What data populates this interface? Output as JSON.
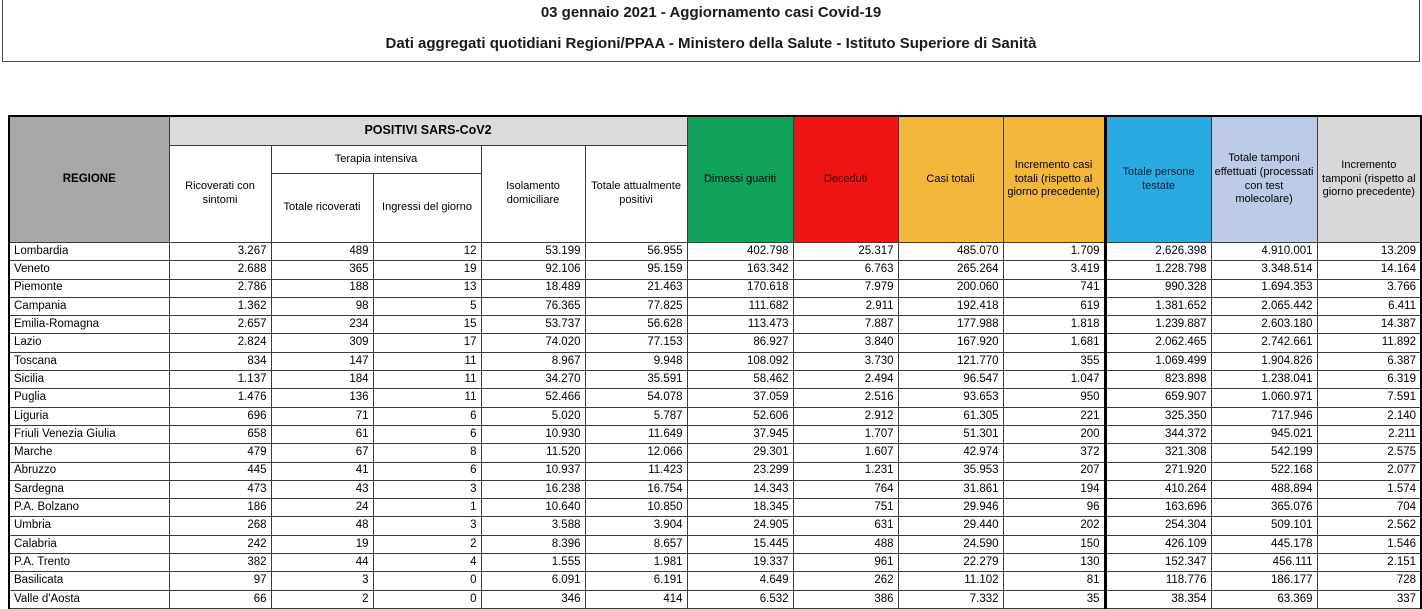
{
  "header_box": {
    "title": "03 gennaio 2021 - Aggiornamento casi Covid-19",
    "subtitle": "Dati aggregati quotidiani Regioni/PPAA - Ministero della Salute - Istituto Superiore di Sanità"
  },
  "table": {
    "region_header": "REGIONE",
    "group_positivi": "POSITIVI SARS-CoV2",
    "group_terapia": "Terapia intensiva",
    "col_ricoverati": "Ricoverati con sintomi",
    "col_totale_ricoverati": "Totale ricoverati",
    "col_ingressi": "Ingressi del giorno",
    "col_isolamento": "Isolamento domiciliare",
    "col_attualmente_positivi": "Totale attualmente positivi",
    "col_dimessi": "Dimessi guariti",
    "col_deceduti": "Deceduti",
    "col_casi_totali": "Casi totali",
    "col_incremento_casi": "Incremento casi totali (rispetto al giorno precedente)",
    "col_persone_testate": "Totale persone testate",
    "col_tamponi": "Totale tamponi effettuati (processati con test molecolare)",
    "col_incremento_tamponi": "Incremento tamponi (rispetto al giorno precedente)",
    "colors": {
      "region_header_bg": "#a8a8a8",
      "positivi_band_bg": "#dbdbdb",
      "dimessi_bg": "#12a35b",
      "deceduti_bg": "#ee1414",
      "casi_totali_bg": "#f3b73c",
      "incremento_casi_bg": "#f3b73c",
      "persone_testate_bg": "#29abe2",
      "tamponi_bg": "#bccce6",
      "incremento_tamponi_bg": "#d8d8d8"
    },
    "rows": [
      {
        "region": "Lombardia",
        "values": [
          "3.267",
          "489",
          "12",
          "53.199",
          "56.955",
          "402.798",
          "25.317",
          "485.070",
          "1.709",
          "2.626.398",
          "4.910.001",
          "13.209"
        ]
      },
      {
        "region": "Veneto",
        "values": [
          "2.688",
          "365",
          "19",
          "92.106",
          "95.159",
          "163.342",
          "6.763",
          "265.264",
          "3.419",
          "1.228.798",
          "3.348.514",
          "14.164"
        ]
      },
      {
        "region": "Piemonte",
        "values": [
          "2.786",
          "188",
          "13",
          "18.489",
          "21.463",
          "170.618",
          "7.979",
          "200.060",
          "741",
          "990.328",
          "1.694.353",
          "3.766"
        ]
      },
      {
        "region": "Campania",
        "values": [
          "1.362",
          "98",
          "5",
          "76.365",
          "77.825",
          "111.682",
          "2.911",
          "192.418",
          "619",
          "1.381.652",
          "2.065.442",
          "6.411"
        ]
      },
      {
        "region": "Emilia-Romagna",
        "values": [
          "2.657",
          "234",
          "15",
          "53.737",
          "56.628",
          "113.473",
          "7.887",
          "177.988",
          "1.818",
          "1.239.887",
          "2.603.180",
          "14.387"
        ]
      },
      {
        "region": "Lazio",
        "values": [
          "2.824",
          "309",
          "17",
          "74.020",
          "77.153",
          "86.927",
          "3.840",
          "167.920",
          "1.681",
          "2.062.465",
          "2.742.661",
          "11.892"
        ]
      },
      {
        "region": "Toscana",
        "values": [
          "834",
          "147",
          "11",
          "8.967",
          "9.948",
          "108.092",
          "3.730",
          "121.770",
          "355",
          "1.069.499",
          "1.904.826",
          "6.387"
        ]
      },
      {
        "region": "Sicilia",
        "values": [
          "1.137",
          "184",
          "11",
          "34.270",
          "35.591",
          "58.462",
          "2.494",
          "96.547",
          "1.047",
          "823.898",
          "1.238.041",
          "6.319"
        ]
      },
      {
        "region": "Puglia",
        "values": [
          "1.476",
          "136",
          "11",
          "52.466",
          "54.078",
          "37.059",
          "2.516",
          "93.653",
          "950",
          "659.907",
          "1.060.971",
          "7.591"
        ]
      },
      {
        "region": "Liguria",
        "values": [
          "696",
          "71",
          "6",
          "5.020",
          "5.787",
          "52.606",
          "2.912",
          "61.305",
          "221",
          "325.350",
          "717.946",
          "2.140"
        ]
      },
      {
        "region": "Friuli Venezia Giulia",
        "values": [
          "658",
          "61",
          "6",
          "10.930",
          "11.649",
          "37.945",
          "1.707",
          "51.301",
          "200",
          "344.372",
          "945.021",
          "2.211"
        ]
      },
      {
        "region": "Marche",
        "values": [
          "479",
          "67",
          "8",
          "11.520",
          "12.066",
          "29.301",
          "1.607",
          "42.974",
          "372",
          "321.308",
          "542.199",
          "2.575"
        ]
      },
      {
        "region": "Abruzzo",
        "values": [
          "445",
          "41",
          "6",
          "10.937",
          "11.423",
          "23.299",
          "1.231",
          "35.953",
          "207",
          "271.920",
          "522.168",
          "2.077"
        ]
      },
      {
        "region": "Sardegna",
        "values": [
          "473",
          "43",
          "3",
          "16.238",
          "16.754",
          "14.343",
          "764",
          "31.861",
          "194",
          "410.264",
          "488.894",
          "1.574"
        ]
      },
      {
        "region": "P.A. Bolzano",
        "values": [
          "186",
          "24",
          "1",
          "10.640",
          "10.850",
          "18.345",
          "751",
          "29.946",
          "96",
          "163.696",
          "365.076",
          "704"
        ]
      },
      {
        "region": "Umbria",
        "values": [
          "268",
          "48",
          "3",
          "3.588",
          "3.904",
          "24.905",
          "631",
          "29.440",
          "202",
          "254.304",
          "509.101",
          "2.562"
        ]
      },
      {
        "region": "Calabria",
        "values": [
          "242",
          "19",
          "2",
          "8.396",
          "8.657",
          "15.445",
          "488",
          "24.590",
          "150",
          "426.109",
          "445.178",
          "1.546"
        ]
      },
      {
        "region": "P.A. Trento",
        "values": [
          "382",
          "44",
          "4",
          "1.555",
          "1.981",
          "19.337",
          "961",
          "22.279",
          "130",
          "152.347",
          "456.111",
          "2.151"
        ]
      },
      {
        "region": "Basilicata",
        "values": [
          "97",
          "3",
          "0",
          "6.091",
          "6.191",
          "4.649",
          "262",
          "11.102",
          "81",
          "118.776",
          "186.177",
          "728"
        ]
      },
      {
        "region": "Valle d'Aosta",
        "values": [
          "66",
          "2",
          "0",
          "346",
          "414",
          "6.532",
          "386",
          "7.332",
          "35",
          "38.354",
          "63.369",
          "337"
        ]
      }
    ]
  }
}
